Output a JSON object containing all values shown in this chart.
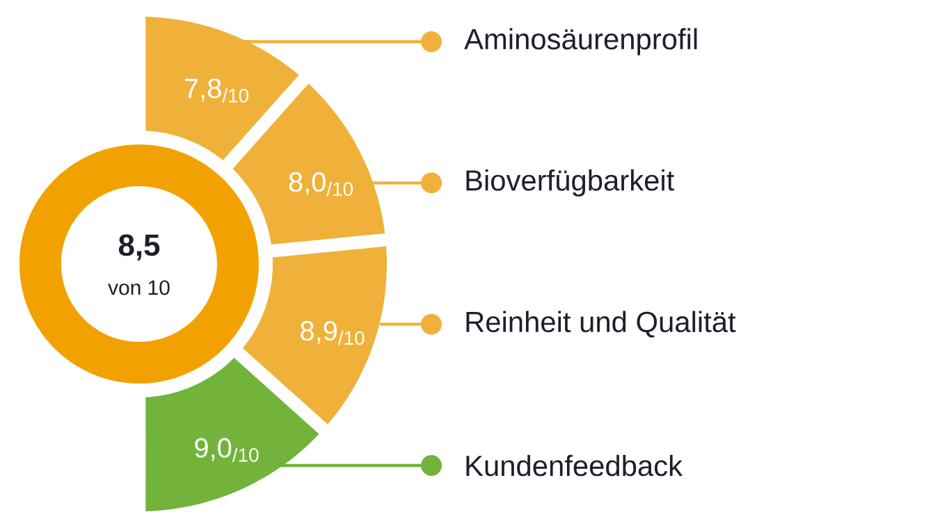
{
  "chart_data": {
    "type": "other",
    "categories": [
      "Aminosäurenprofil",
      "Bioverfügbarkeit",
      "Reinheit und Qualität",
      "Kundenfeedback"
    ],
    "values": [
      7.8,
      8.0,
      8.9,
      9.0
    ],
    "value_labels": [
      "7,8$_{/10}$",
      "8,0$_{/10}$",
      "8,9$_{/10}$",
      "9,0$_{/10}$"
    ],
    "colors": [
      "#efb139",
      "#efb139",
      "#efb139",
      "#72b33b"
    ],
    "annotations": [
      "8,5",
      "von 10"
    ]
  }
}
